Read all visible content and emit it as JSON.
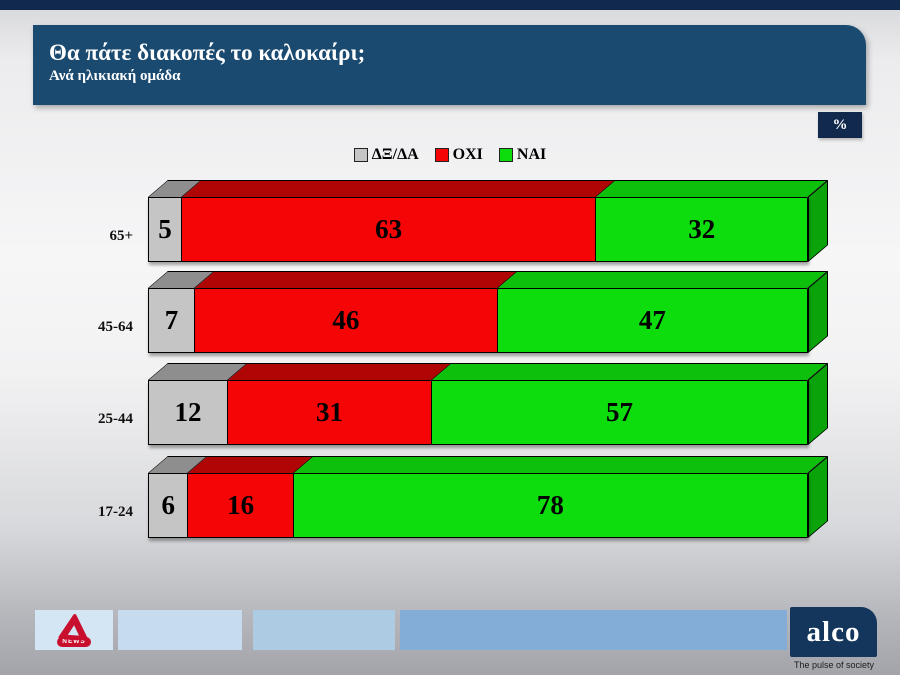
{
  "header": {
    "title": "Θα πάτε διακοπές το καλοκαίρι;",
    "subtitle": "Ανά ηλικιακή ομάδα"
  },
  "unit_badge": "%",
  "chart_data": {
    "type": "bar",
    "stacked": true,
    "orientation": "horizontal",
    "title": "Θα πάτε διακοπές το καλοκαίρι; — Ανά ηλικιακή ομάδα",
    "categories": [
      "65+",
      "45-64",
      "25-44",
      "17-24"
    ],
    "series": [
      {
        "name": "ΔΞ/ΔΑ",
        "color": "#c5c5c5",
        "top_color": "#8e8e8e",
        "side_color": "#9a9a9a",
        "values": [
          5,
          7,
          12,
          6
        ]
      },
      {
        "name": "ΟΧΙ",
        "color": "#f50505",
        "top_color": "#b00505",
        "side_color": "#c40505",
        "values": [
          63,
          46,
          31,
          16
        ]
      },
      {
        "name": "ΝΑΙ",
        "color": "#0ddd0d",
        "top_color": "#0cc00c",
        "side_color": "#0aa30a",
        "values": [
          32,
          47,
          57,
          78
        ]
      }
    ],
    "xlim": [
      0,
      100
    ],
    "unit": "%",
    "grid": false,
    "legend_position": "top",
    "value_labels": "inside-center"
  },
  "footer": {
    "alpha_news_label": "NEWS",
    "alco_logo": "alco",
    "alco_tagline": "The pulse of society",
    "strip_colors": [
      "#d4e5f3",
      "#c6dbee",
      "#aecbe4",
      "#83add6"
    ]
  },
  "colors": {
    "top_strip": "#11294d",
    "header_bg": "#1a4a70",
    "badge_bg": "#11294d",
    "alco_bg": "#14365c",
    "alpha_red": "#c8102e"
  }
}
